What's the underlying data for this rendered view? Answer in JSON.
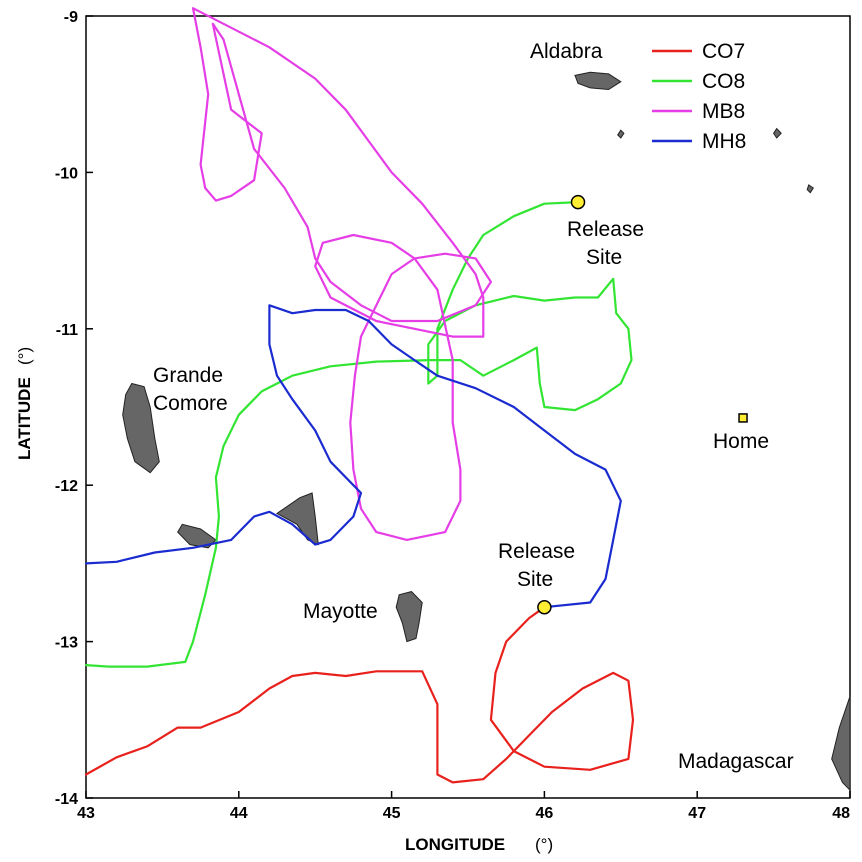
{
  "colors": {
    "CO7": "#e8211d",
    "CO8": "#33e533",
    "MB8": "#e63ee6",
    "MH8": "#1a2bd0",
    "island": "#666666",
    "release_marker": "#ffee33",
    "home_marker": "#ffee33"
  },
  "axes": {
    "xlabel": "LONGITUDE",
    "xunit": "(°)",
    "ylabel": "LATITUDE",
    "yunit": "(°)",
    "xlim": [
      43,
      48
    ],
    "ylim": [
      -14,
      -9
    ],
    "xticks": [
      {
        "value": 43,
        "label": "43"
      },
      {
        "value": 44,
        "label": "44"
      },
      {
        "value": 45,
        "label": "45"
      },
      {
        "value": 46,
        "label": "46"
      },
      {
        "value": 47,
        "label": "47"
      },
      {
        "value": 48,
        "label": "48"
      }
    ],
    "yticks": [
      {
        "value": -9,
        "label": "-9"
      },
      {
        "value": -10,
        "label": "-10"
      },
      {
        "value": -11,
        "label": "-11"
      },
      {
        "value": -12,
        "label": "-12"
      },
      {
        "value": -13,
        "label": "-13"
      },
      {
        "value": -14,
        "label": "-14"
      }
    ]
  },
  "legend": {
    "placement": "top-right",
    "entries": [
      {
        "id": "CO7",
        "label": "CO7"
      },
      {
        "id": "CO8",
        "label": "CO8"
      },
      {
        "id": "MB8",
        "label": "MB8"
      },
      {
        "id": "MH8",
        "label": "MH8"
      }
    ]
  },
  "places": {
    "aldabra": "Aldabra",
    "grande_comore_1": "Grande",
    "grande_comore_2": "Comore",
    "mayotte": "Mayotte",
    "madagascar": "Madagascar",
    "home": "Home",
    "release_north_1": "Release",
    "release_north_2": "Site",
    "release_south_1": "Release",
    "release_south_2": "Site"
  },
  "markers": {
    "release_north": {
      "lon": 46.22,
      "lat": -10.19
    },
    "release_south": {
      "lon": 46.0,
      "lat": -12.78
    },
    "home": {
      "lon": 47.3,
      "lat": -11.57
    }
  },
  "tracks": [
    {
      "id": "CO7",
      "points": [
        [
          43.0,
          -13.85
        ],
        [
          43.2,
          -13.74
        ],
        [
          43.4,
          -13.67
        ],
        [
          43.6,
          -13.55
        ],
        [
          43.75,
          -13.55
        ],
        [
          44.0,
          -13.45
        ],
        [
          44.2,
          -13.3
        ],
        [
          44.35,
          -13.22
        ],
        [
          44.5,
          -13.2
        ],
        [
          44.7,
          -13.22
        ],
        [
          44.9,
          -13.19
        ],
        [
          45.2,
          -13.19
        ],
        [
          45.3,
          -13.4
        ],
        [
          45.3,
          -13.85
        ],
        [
          45.4,
          -13.9
        ],
        [
          45.6,
          -13.88
        ],
        [
          45.75,
          -13.75
        ],
        [
          45.9,
          -13.6
        ],
        [
          46.05,
          -13.45
        ],
        [
          46.25,
          -13.3
        ],
        [
          46.45,
          -13.2
        ],
        [
          46.55,
          -13.25
        ],
        [
          46.58,
          -13.5
        ],
        [
          46.55,
          -13.75
        ],
        [
          46.3,
          -13.82
        ],
        [
          46.0,
          -13.8
        ],
        [
          45.8,
          -13.7
        ],
        [
          45.65,
          -13.5
        ],
        [
          45.68,
          -13.2
        ],
        [
          45.75,
          -13.0
        ],
        [
          45.9,
          -12.85
        ],
        [
          46.0,
          -12.78
        ]
      ]
    },
    {
      "id": "CO8",
      "points": [
        [
          43.0,
          -13.15
        ],
        [
          43.15,
          -13.16
        ],
        [
          43.4,
          -13.16
        ],
        [
          43.65,
          -13.13
        ],
        [
          43.7,
          -13.0
        ],
        [
          43.78,
          -12.7
        ],
        [
          43.85,
          -12.4
        ],
        [
          43.87,
          -12.2
        ],
        [
          43.85,
          -11.95
        ],
        [
          43.9,
          -11.75
        ],
        [
          44.0,
          -11.55
        ],
        [
          44.15,
          -11.4
        ],
        [
          44.35,
          -11.3
        ],
        [
          44.6,
          -11.24
        ],
        [
          44.9,
          -11.21
        ],
        [
          45.25,
          -11.2
        ],
        [
          45.45,
          -11.2
        ],
        [
          45.6,
          -11.3
        ],
        [
          45.8,
          -11.2
        ],
        [
          45.95,
          -11.12
        ],
        [
          45.97,
          -11.35
        ],
        [
          46.0,
          -11.5
        ],
        [
          46.2,
          -11.52
        ],
        [
          46.35,
          -11.45
        ],
        [
          46.5,
          -11.35
        ],
        [
          46.57,
          -11.2
        ],
        [
          46.55,
          -11.0
        ],
        [
          46.47,
          -10.9
        ],
        [
          46.45,
          -10.68
        ],
        [
          46.35,
          -10.8
        ],
        [
          46.2,
          -10.8
        ],
        [
          46.0,
          -10.82
        ],
        [
          45.8,
          -10.79
        ],
        [
          45.55,
          -10.85
        ],
        [
          45.35,
          -10.95
        ],
        [
          45.24,
          -11.1
        ],
        [
          45.24,
          -11.35
        ],
        [
          45.3,
          -11.3
        ],
        [
          45.3,
          -11.0
        ],
        [
          45.4,
          -10.75
        ],
        [
          45.5,
          -10.55
        ],
        [
          45.6,
          -10.4
        ],
        [
          45.8,
          -10.28
        ],
        [
          46.0,
          -10.2
        ],
        [
          46.22,
          -10.19
        ]
      ]
    },
    {
      "id": "MB8",
      "points": [
        [
          43.85,
          -10.18
        ],
        [
          43.78,
          -10.1
        ],
        [
          43.75,
          -9.95
        ],
        [
          43.8,
          -9.5
        ],
        [
          43.75,
          -9.2
        ],
        [
          43.7,
          -8.95
        ],
        [
          43.9,
          -9.05
        ],
        [
          44.2,
          -9.2
        ],
        [
          44.5,
          -9.4
        ],
        [
          44.7,
          -9.6
        ],
        [
          44.85,
          -9.8
        ],
        [
          45.0,
          -10.0
        ],
        [
          45.2,
          -10.2
        ],
        [
          45.4,
          -10.45
        ],
        [
          45.55,
          -10.65
        ],
        [
          45.6,
          -10.8
        ],
        [
          45.6,
          -11.05
        ],
        [
          45.4,
          -11.05
        ],
        [
          45.15,
          -11.0
        ],
        [
          44.9,
          -10.95
        ],
        [
          44.6,
          -10.8
        ],
        [
          44.5,
          -10.6
        ],
        [
          44.55,
          -10.45
        ],
        [
          44.75,
          -10.4
        ],
        [
          45.0,
          -10.45
        ],
        [
          45.15,
          -10.55
        ],
        [
          45.3,
          -10.75
        ],
        [
          45.4,
          -11.2
        ],
        [
          45.4,
          -11.6
        ],
        [
          45.45,
          -11.9
        ],
        [
          45.45,
          -12.1
        ],
        [
          45.35,
          -12.3
        ],
        [
          45.1,
          -12.35
        ],
        [
          44.9,
          -12.3
        ],
        [
          44.8,
          -12.15
        ],
        [
          44.75,
          -11.9
        ],
        [
          44.73,
          -11.6
        ],
        [
          44.76,
          -11.3
        ],
        [
          44.8,
          -11.05
        ],
        [
          44.9,
          -10.85
        ],
        [
          45.0,
          -10.65
        ],
        [
          45.15,
          -10.55
        ],
        [
          45.35,
          -10.52
        ],
        [
          45.55,
          -10.55
        ],
        [
          45.65,
          -10.7
        ],
        [
          45.55,
          -10.85
        ],
        [
          45.3,
          -10.95
        ],
        [
          45.0,
          -10.95
        ],
        [
          44.8,
          -10.85
        ],
        [
          44.6,
          -10.7
        ],
        [
          44.5,
          -10.55
        ],
        [
          44.45,
          -10.35
        ],
        [
          44.3,
          -10.1
        ],
        [
          44.1,
          -9.85
        ],
        [
          44.0,
          -9.5
        ],
        [
          43.9,
          -9.15
        ],
        [
          43.83,
          -9.05
        ],
        [
          43.95,
          -9.6
        ],
        [
          44.15,
          -9.75
        ],
        [
          44.1,
          -10.05
        ],
        [
          43.95,
          -10.15
        ],
        [
          43.85,
          -10.18
        ]
      ]
    },
    {
      "id": "MH8",
      "points": [
        [
          43.0,
          -12.5
        ],
        [
          43.2,
          -12.49
        ],
        [
          43.45,
          -12.43
        ],
        [
          43.7,
          -12.4
        ],
        [
          43.95,
          -12.35
        ],
        [
          44.1,
          -12.2
        ],
        [
          44.2,
          -12.17
        ],
        [
          44.35,
          -12.25
        ],
        [
          44.5,
          -12.38
        ],
        [
          44.6,
          -12.35
        ],
        [
          44.75,
          -12.2
        ],
        [
          44.8,
          -12.05
        ],
        [
          44.6,
          -11.85
        ],
        [
          44.5,
          -11.65
        ],
        [
          44.35,
          -11.45
        ],
        [
          44.25,
          -11.3
        ],
        [
          44.2,
          -11.1
        ],
        [
          44.2,
          -10.85
        ],
        [
          44.35,
          -10.9
        ],
        [
          44.5,
          -10.88
        ],
        [
          44.7,
          -10.88
        ],
        [
          44.85,
          -10.95
        ],
        [
          45.0,
          -11.1
        ],
        [
          45.15,
          -11.2
        ],
        [
          45.3,
          -11.3
        ],
        [
          45.55,
          -11.38
        ],
        [
          45.8,
          -11.5
        ],
        [
          46.0,
          -11.65
        ],
        [
          46.2,
          -11.8
        ],
        [
          46.4,
          -11.9
        ],
        [
          46.5,
          -12.1
        ],
        [
          46.45,
          -12.35
        ],
        [
          46.4,
          -12.6
        ],
        [
          46.3,
          -12.75
        ],
        [
          46.0,
          -12.78
        ]
      ]
    }
  ],
  "islands": [
    {
      "id": "aldabra",
      "points": [
        [
          46.2,
          -9.38
        ],
        [
          46.3,
          -9.36
        ],
        [
          46.42,
          -9.37
        ],
        [
          46.5,
          -9.42
        ],
        [
          46.42,
          -9.47
        ],
        [
          46.3,
          -9.46
        ],
        [
          46.22,
          -9.43
        ]
      ]
    },
    {
      "id": "grande-comore",
      "points": [
        [
          43.3,
          -11.35
        ],
        [
          43.38,
          -11.37
        ],
        [
          43.42,
          -11.5
        ],
        [
          43.45,
          -11.7
        ],
        [
          43.48,
          -11.85
        ],
        [
          43.42,
          -11.92
        ],
        [
          43.32,
          -11.85
        ],
        [
          43.27,
          -11.7
        ],
        [
          43.24,
          -11.55
        ],
        [
          43.26,
          -11.42
        ]
      ]
    },
    {
      "id": "moheli",
      "points": [
        [
          43.63,
          -12.25
        ],
        [
          43.75,
          -12.28
        ],
        [
          43.85,
          -12.35
        ],
        [
          43.8,
          -12.4
        ],
        [
          43.68,
          -12.38
        ],
        [
          43.6,
          -12.3
        ]
      ]
    },
    {
      "id": "anjouan",
      "points": [
        [
          44.25,
          -12.18
        ],
        [
          44.4,
          -12.08
        ],
        [
          44.48,
          -12.05
        ],
        [
          44.5,
          -12.2
        ],
        [
          44.52,
          -12.38
        ],
        [
          44.45,
          -12.35
        ],
        [
          44.38,
          -12.25
        ]
      ]
    },
    {
      "id": "mayotte",
      "points": [
        [
          45.05,
          -12.7
        ],
        [
          45.13,
          -12.68
        ],
        [
          45.2,
          -12.75
        ],
        [
          45.18,
          -12.88
        ],
        [
          45.16,
          -12.98
        ],
        [
          45.1,
          -13.0
        ],
        [
          45.07,
          -12.88
        ],
        [
          45.03,
          -12.78
        ]
      ]
    },
    {
      "id": "madagascar",
      "points": [
        [
          48.0,
          -13.35
        ],
        [
          47.93,
          -13.55
        ],
        [
          47.88,
          -13.75
        ],
        [
          47.95,
          -13.9
        ],
        [
          48.0,
          -13.95
        ]
      ]
    },
    {
      "id": "islet-1",
      "points": [
        [
          46.5,
          -9.73
        ],
        [
          46.52,
          -9.75
        ],
        [
          46.5,
          -9.78
        ],
        [
          46.48,
          -9.76
        ]
      ]
    },
    {
      "id": "islet-2",
      "points": [
        [
          47.52,
          -9.72
        ],
        [
          47.55,
          -9.75
        ],
        [
          47.52,
          -9.78
        ],
        [
          47.5,
          -9.75
        ]
      ]
    },
    {
      "id": "islet-3",
      "points": [
        [
          47.73,
          -10.08
        ],
        [
          47.76,
          -10.1
        ],
        [
          47.74,
          -10.13
        ],
        [
          47.72,
          -10.11
        ]
      ]
    }
  ]
}
